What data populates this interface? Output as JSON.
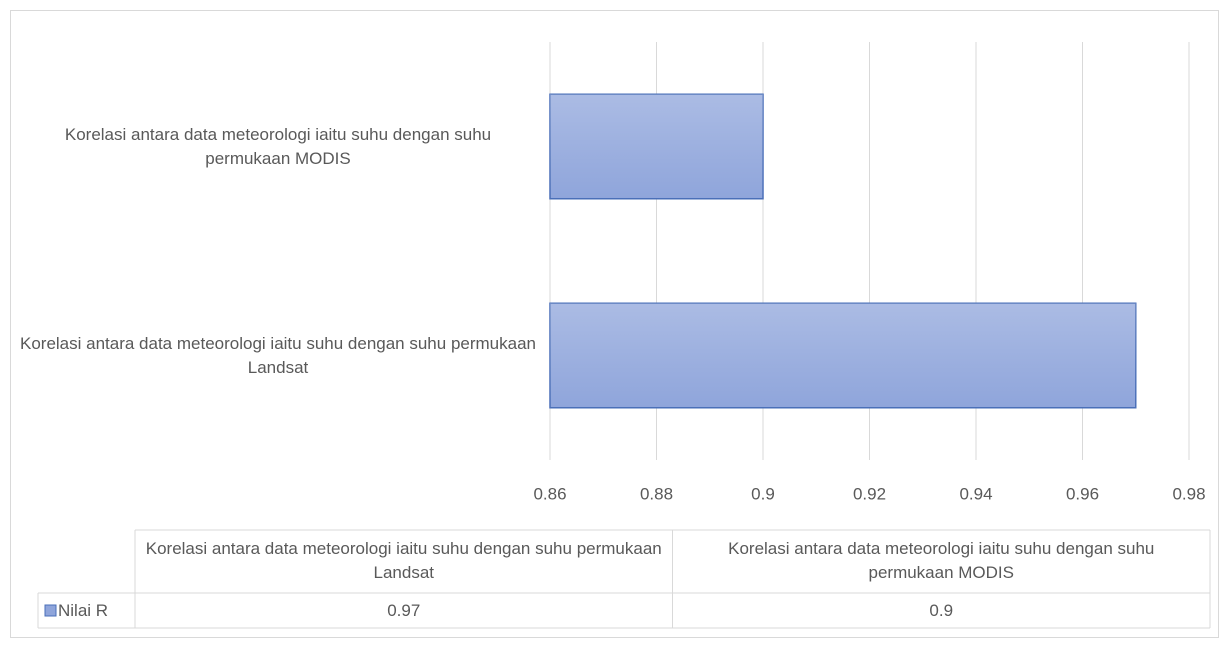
{
  "chart_data": {
    "type": "bar",
    "orientation": "horizontal",
    "categories": [
      "Korelasi antara data meteorologi iaitu suhu dengan suhu permukaan Landsat",
      "Korelasi antara data meteorologi iaitu suhu dengan suhu  permukaan MODIS"
    ],
    "series": [
      {
        "name": "Nilai R",
        "color": "#8fa5db",
        "values": [
          0.97,
          0.9
        ]
      }
    ],
    "xlim": [
      0.86,
      0.98
    ],
    "xticks": [
      0.86,
      0.88,
      0.9,
      0.92,
      0.94,
      0.96,
      0.98
    ],
    "grid": true,
    "data_table": true
  }
}
